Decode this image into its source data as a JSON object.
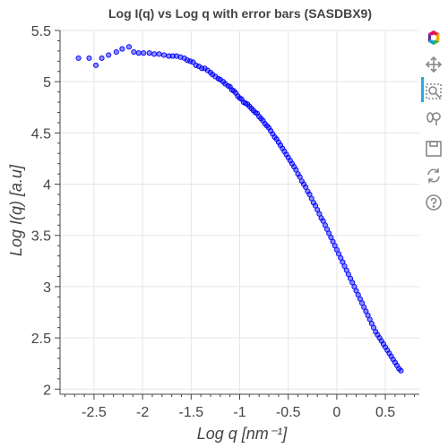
{
  "chart_data": {
    "type": "scatter",
    "title": "Log I(q) vs Log q with error bars (SASDBX9)",
    "xlabel": "Log q [nm⁻¹]",
    "ylabel": "Log I(q) [a.u]",
    "xlim": [
      -2.85,
      0.85
    ],
    "ylim": [
      1.95,
      5.5
    ],
    "xticks": [
      -2.5,
      -2,
      -1.5,
      -1,
      -0.5,
      0,
      0.5
    ],
    "xtick_labels": [
      "-2.5",
      "-2",
      "-1.5",
      "-1",
      "-0.5",
      "0",
      "0.5"
    ],
    "yticks": [
      2,
      2.5,
      3,
      3.5,
      4,
      4.5,
      5,
      5.5
    ],
    "ytick_labels": [
      "2",
      "2.5",
      "3",
      "3.5",
      "4",
      "4.5",
      "5",
      "5.5"
    ],
    "grid": true,
    "marker_color": "#0000ff",
    "x": [
      -2.66,
      -2.55,
      -2.48,
      -2.42,
      -2.35,
      -2.27,
      -2.21,
      -2.14,
      -2.09,
      -2.04,
      -1.99,
      -1.93,
      -1.88,
      -1.83,
      -1.78,
      -1.73,
      -1.69,
      -1.65,
      -1.61,
      -1.57,
      -1.54,
      -1.51,
      -1.48,
      -1.45,
      -1.42,
      -1.39,
      -1.36,
      -1.33,
      -1.3,
      -1.28,
      -1.25,
      -1.22,
      -1.2,
      -1.17,
      -1.15,
      -1.12,
      -1.1,
      -1.08,
      -1.06,
      -1.04,
      -1.02,
      -1,
      -0.98,
      -0.96,
      -0.94,
      -0.92,
      -0.9,
      -0.88,
      -0.86,
      -0.84,
      -0.82,
      -0.8,
      -0.78,
      -0.76,
      -0.74,
      -0.72,
      -0.7,
      -0.68,
      -0.66,
      -0.64,
      -0.62,
      -0.6,
      -0.58,
      -0.56,
      -0.54,
      -0.52,
      -0.5,
      -0.48,
      -0.46,
      -0.44,
      -0.42,
      -0.4,
      -0.38,
      -0.36,
      -0.34,
      -0.32,
      -0.3,
      -0.28,
      -0.26,
      -0.24,
      -0.22,
      -0.2,
      -0.18,
      -0.16,
      -0.14,
      -0.12,
      -0.1,
      -0.08,
      -0.06,
      -0.04,
      -0.02,
      0,
      0.02,
      0.04,
      0.06,
      0.08,
      0.1,
      0.12,
      0.14,
      0.16,
      0.18,
      0.2,
      0.22,
      0.24,
      0.26,
      0.28,
      0.3,
      0.32,
      0.34,
      0.36,
      0.38,
      0.4,
      0.42,
      0.44,
      0.46,
      0.48,
      0.5,
      0.52,
      0.54,
      0.56,
      0.58,
      0.6,
      0.62,
      0.64,
      0.66
    ],
    "y": [
      5.23,
      5.23,
      5.16,
      5.23,
      5.26,
      5.29,
      5.32,
      5.34,
      5.29,
      5.28,
      5.28,
      5.28,
      5.27,
      5.27,
      5.26,
      5.25,
      5.25,
      5.25,
      5.24,
      5.23,
      5.21,
      5.2,
      5.19,
      5.16,
      5.15,
      5.13,
      5.13,
      5.11,
      5.09,
      5.07,
      5.05,
      5.03,
      5.02,
      5.0,
      4.98,
      4.96,
      4.95,
      4.92,
      4.91,
      4.89,
      4.86,
      4.84,
      4.83,
      4.8,
      4.79,
      4.78,
      4.76,
      4.74,
      4.72,
      4.7,
      4.69,
      4.66,
      4.64,
      4.62,
      4.59,
      4.57,
      4.55,
      4.52,
      4.49,
      4.46,
      4.44,
      4.41,
      4.38,
      4.35,
      4.32,
      4.29,
      4.26,
      4.23,
      4.2,
      4.17,
      4.14,
      4.1,
      4.07,
      4.03,
      4.0,
      3.97,
      3.93,
      3.9,
      3.86,
      3.82,
      3.79,
      3.75,
      3.71,
      3.67,
      3.64,
      3.6,
      3.56,
      3.52,
      3.48,
      3.44,
      3.4,
      3.36,
      3.32,
      3.28,
      3.24,
      3.2,
      3.16,
      3.12,
      3.08,
      3.04,
      3.0,
      2.96,
      2.92,
      2.88,
      2.84,
      2.8,
      2.76,
      2.72,
      2.68,
      2.64,
      2.6,
      2.56,
      2.53,
      2.5,
      2.47,
      2.44,
      2.41,
      2.38,
      2.35,
      2.32,
      2.29,
      2.26,
      2.23,
      2.2,
      2.18
    ]
  },
  "toolbar": {
    "tools": [
      {
        "icon": "bokeh-logo-icon",
        "interactable": false
      },
      {
        "icon": "pan-icon",
        "interactable": true,
        "active": true
      },
      {
        "icon": "box-zoom-icon",
        "interactable": true
      },
      {
        "icon": "wheel-zoom-icon",
        "interactable": true
      },
      {
        "icon": "save-icon",
        "interactable": true
      },
      {
        "icon": "reset-icon",
        "interactable": true
      },
      {
        "icon": "help-icon",
        "interactable": true
      }
    ]
  }
}
